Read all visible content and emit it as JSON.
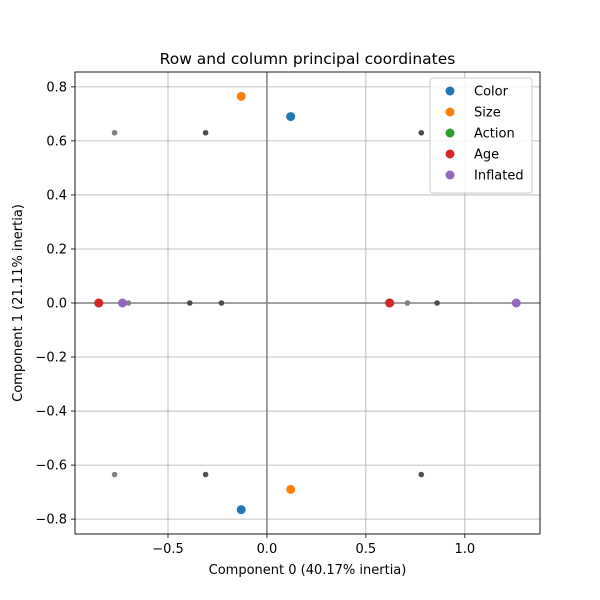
{
  "chart_data": {
    "type": "scatter",
    "title": "Row and column principal coordinates",
    "xlabel": "Component 0 (40.17% inertia)",
    "ylabel": "Component 1 (21.11% inertia)",
    "xlim": [
      -0.97,
      1.38
    ],
    "ylim": [
      -0.855,
      0.855
    ],
    "grid": true,
    "legend_position": "top-right",
    "x_ticks": [
      {
        "value": -0.5,
        "label": "−0.5"
      },
      {
        "value": 0.0,
        "label": "0.0"
      },
      {
        "value": 0.5,
        "label": "0.5"
      },
      {
        "value": 1.0,
        "label": "1.0"
      }
    ],
    "y_ticks": [
      {
        "value": 0.8,
        "label": "0.8"
      },
      {
        "value": 0.6,
        "label": "0.6"
      },
      {
        "value": 0.4,
        "label": "0.4"
      },
      {
        "value": 0.2,
        "label": "0.2"
      },
      {
        "value": 0.0,
        "label": "0.0"
      },
      {
        "value": -0.2,
        "label": "−0.2"
      },
      {
        "value": -0.4,
        "label": "−0.4"
      },
      {
        "value": -0.6,
        "label": "−0.6"
      },
      {
        "value": -0.8,
        "label": "−0.8"
      }
    ],
    "row_points": {
      "color": "#4d4d4d",
      "points": [
        {
          "x": -0.77,
          "y": 0.63,
          "shade": "#808080"
        },
        {
          "x": -0.31,
          "y": 0.63,
          "shade": "#4d4d4d"
        },
        {
          "x": 0.78,
          "y": 0.63,
          "shade": "#4d4d4d"
        },
        {
          "x": -0.7,
          "y": 0.0,
          "shade": "#808080"
        },
        {
          "x": -0.39,
          "y": 0.0,
          "shade": "#4d4d4d"
        },
        {
          "x": -0.23,
          "y": 0.0,
          "shade": "#4d4d4d"
        },
        {
          "x": 0.71,
          "y": 0.0,
          "shade": "#808080"
        },
        {
          "x": 0.86,
          "y": 0.0,
          "shade": "#4d4d4d"
        },
        {
          "x": -0.77,
          "y": -0.635,
          "shade": "#808080"
        },
        {
          "x": -0.31,
          "y": -0.635,
          "shade": "#4d4d4d"
        },
        {
          "x": 0.78,
          "y": -0.635,
          "shade": "#4d4d4d"
        }
      ]
    },
    "series": [
      {
        "name": "Color",
        "color": "#1f77b4",
        "points": [
          {
            "x": 0.12,
            "y": 0.69
          },
          {
            "x": -0.13,
            "y": -0.765
          }
        ]
      },
      {
        "name": "Size",
        "color": "#ff7f0e",
        "points": [
          {
            "x": -0.13,
            "y": 0.765
          },
          {
            "x": 0.12,
            "y": -0.69
          }
        ]
      },
      {
        "name": "Action",
        "color": "#2ca02c",
        "points": [
          {
            "x": -0.85,
            "y": 0.0
          },
          {
            "x": 0.62,
            "y": 0.0
          }
        ]
      },
      {
        "name": "Age",
        "color": "#d62728",
        "points": [
          {
            "x": -0.85,
            "y": 0.0
          },
          {
            "x": 0.62,
            "y": 0.0
          }
        ]
      },
      {
        "name": "Inflated",
        "color": "#9467bd",
        "points": [
          {
            "x": -0.73,
            "y": 0.0
          },
          {
            "x": 1.26,
            "y": 0.0
          }
        ]
      }
    ]
  }
}
